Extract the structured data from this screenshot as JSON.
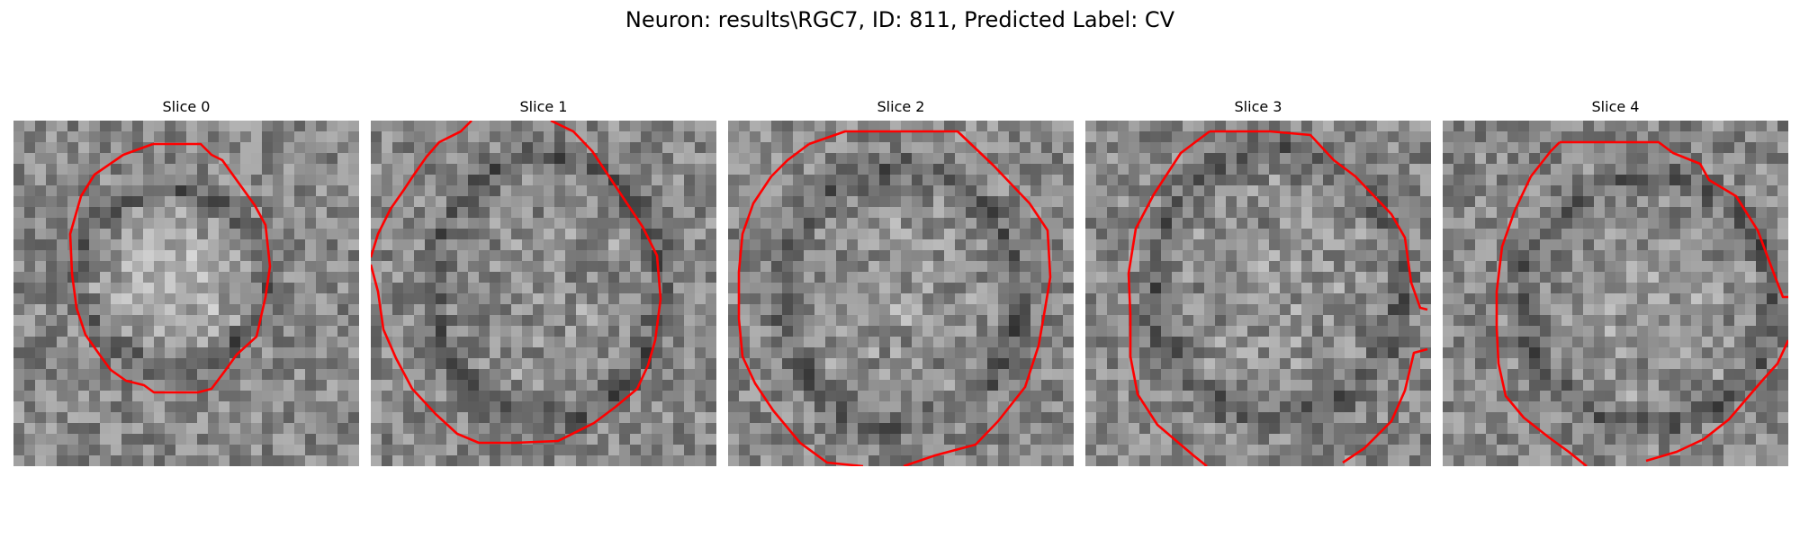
{
  "figure": {
    "title": "Neuron: results\\RGC7, ID: 811, Predicted Label: CV"
  },
  "colors": {
    "contour": "#ff0000",
    "background": "#ffffff"
  },
  "panels": [
    {
      "title": "Slice 0"
    },
    {
      "title": "Slice 1"
    },
    {
      "title": "Slice 2"
    },
    {
      "title": "Slice 3"
    },
    {
      "title": "Slice 4"
    }
  ]
}
